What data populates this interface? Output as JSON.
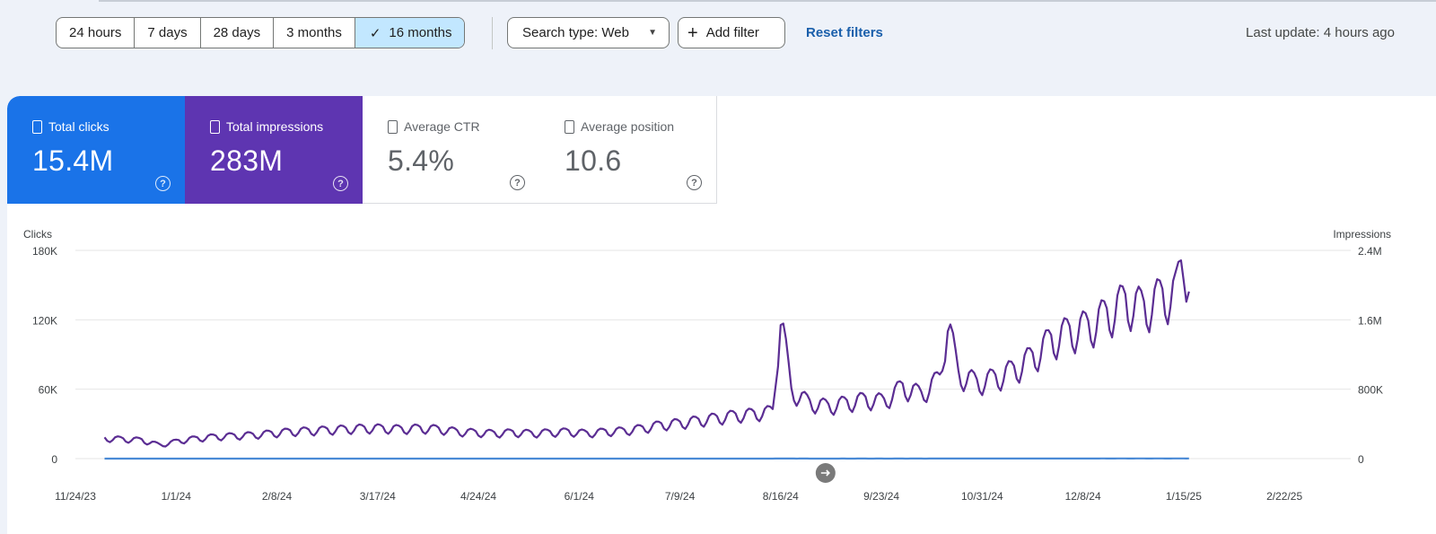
{
  "filters": {
    "ranges": [
      {
        "label": "24 hours",
        "selected": false
      },
      {
        "label": "7 days",
        "selected": false
      },
      {
        "label": "28 days",
        "selected": false
      },
      {
        "label": "3 months",
        "selected": false
      },
      {
        "label": "16 months",
        "selected": true
      }
    ],
    "search_type": "Search type: Web",
    "add_filter": "Add filter",
    "reset": "Reset filters",
    "last_update": "Last update: 4 hours ago"
  },
  "metrics": [
    {
      "label": "Total clicks",
      "value": "15.4M"
    },
    {
      "label": "Total impressions",
      "value": "283M"
    },
    {
      "label": "Average CTR",
      "value": "5.4%"
    },
    {
      "label": "Average position",
      "value": "10.6"
    }
  ],
  "colors": {
    "clicks": "#4a8ad6",
    "impressions": "#5b2d93",
    "grid": "#e6e6e6"
  },
  "chart_data": {
    "type": "line",
    "left_axis_label": "Clicks",
    "right_axis_label": "Impressions",
    "left_ticks": [
      "0",
      "60K",
      "120K",
      "180K"
    ],
    "right_ticks": [
      "0",
      "800K",
      "1.6M",
      "2.4M"
    ],
    "ylim_left": [
      0,
      180000
    ],
    "ylim_right": [
      0,
      2400000
    ],
    "x_tick_labels": [
      "11/24/23",
      "1/1/24",
      "2/8/24",
      "3/17/24",
      "4/24/24",
      "6/1/24",
      "7/9/24",
      "8/16/24",
      "9/23/24",
      "10/31/24",
      "12/8/24",
      "1/15/25",
      "2/22/25"
    ],
    "grid": true,
    "series": [
      {
        "name": "Clicks",
        "axis": "left",
        "color": "#4a8ad6",
        "weekly_points": [
          [
            11,
            14
          ],
          [
            18,
            13
          ],
          [
            25,
            12
          ],
          [
            32,
            8
          ],
          [
            39,
            12
          ],
          [
            46,
            14
          ],
          [
            53,
            15
          ],
          [
            60,
            15
          ],
          [
            67,
            16
          ],
          [
            74,
            17
          ],
          [
            81,
            18
          ],
          [
            88,
            18
          ],
          [
            95,
            19
          ],
          [
            102,
            20
          ],
          [
            109,
            20
          ],
          [
            116,
            20
          ],
          [
            123,
            19
          ],
          [
            130,
            20
          ],
          [
            137,
            19
          ],
          [
            144,
            17
          ],
          [
            151,
            17
          ],
          [
            158,
            16
          ],
          [
            165,
            17
          ],
          [
            172,
            16
          ],
          [
            179,
            17
          ],
          [
            186,
            17
          ],
          [
            193,
            16
          ],
          [
            200,
            17
          ],
          [
            207,
            18
          ],
          [
            214,
            20
          ],
          [
            221,
            22
          ],
          [
            228,
            24
          ],
          [
            235,
            26
          ],
          [
            242,
            28
          ],
          [
            249,
            30
          ],
          [
            256,
            32
          ],
          [
            263,
            35
          ],
          [
            266,
            100
          ],
          [
            270,
            50
          ],
          [
            277,
            38
          ],
          [
            284,
            34
          ],
          [
            291,
            37
          ],
          [
            298,
            40
          ],
          [
            305,
            38
          ],
          [
            312,
            45
          ],
          [
            319,
            42
          ],
          [
            326,
            55
          ],
          [
            329,
            110
          ],
          [
            333,
            58
          ],
          [
            340,
            55
          ],
          [
            347,
            60
          ],
          [
            354,
            65
          ],
          [
            361,
            75
          ],
          [
            368,
            90
          ],
          [
            375,
            95
          ],
          [
            382,
            100
          ],
          [
            389,
            110
          ],
          [
            396,
            118
          ],
          [
            403,
            115
          ],
          [
            410,
            125
          ],
          [
            415,
            130
          ],
          [
            418,
            155
          ],
          [
            420,
            135
          ]
        ]
      },
      {
        "name": "Impressions",
        "axis": "right",
        "color": "#5b2d93",
        "weekly_points": [
          [
            11,
            240000
          ],
          [
            18,
            230000
          ],
          [
            25,
            220000
          ],
          [
            32,
            160000
          ],
          [
            39,
            210000
          ],
          [
            46,
            240000
          ],
          [
            53,
            260000
          ],
          [
            60,
            270000
          ],
          [
            67,
            280000
          ],
          [
            74,
            300000
          ],
          [
            81,
            320000
          ],
          [
            88,
            330000
          ],
          [
            95,
            340000
          ],
          [
            102,
            350000
          ],
          [
            109,
            360000
          ],
          [
            116,
            360000
          ],
          [
            123,
            350000
          ],
          [
            130,
            360000
          ],
          [
            137,
            350000
          ],
          [
            144,
            320000
          ],
          [
            151,
            310000
          ],
          [
            158,
            300000
          ],
          [
            165,
            310000
          ],
          [
            172,
            300000
          ],
          [
            179,
            310000
          ],
          [
            186,
            320000
          ],
          [
            193,
            300000
          ],
          [
            200,
            320000
          ],
          [
            207,
            330000
          ],
          [
            214,
            360000
          ],
          [
            221,
            400000
          ],
          [
            228,
            420000
          ],
          [
            235,
            450000
          ],
          [
            242,
            480000
          ],
          [
            249,
            510000
          ],
          [
            256,
            530000
          ],
          [
            263,
            560000
          ],
          [
            266,
            1710000
          ],
          [
            270,
            800000
          ],
          [
            277,
            660000
          ],
          [
            284,
            620000
          ],
          [
            291,
            660000
          ],
          [
            298,
            700000
          ],
          [
            305,
            680000
          ],
          [
            312,
            850000
          ],
          [
            319,
            760000
          ],
          [
            326,
            950000
          ],
          [
            329,
            1630000
          ],
          [
            333,
            1000000
          ],
          [
            340,
            900000
          ],
          [
            347,
            950000
          ],
          [
            354,
            1050000
          ],
          [
            361,
            1200000
          ],
          [
            368,
            1400000
          ],
          [
            375,
            1500000
          ],
          [
            382,
            1560000
          ],
          [
            389,
            1700000
          ],
          [
            396,
            1860000
          ],
          [
            403,
            1780000
          ],
          [
            410,
            1920000
          ],
          [
            415,
            1960000
          ],
          [
            418,
            2380000
          ],
          [
            420,
            2140000
          ]
        ]
      }
    ]
  }
}
